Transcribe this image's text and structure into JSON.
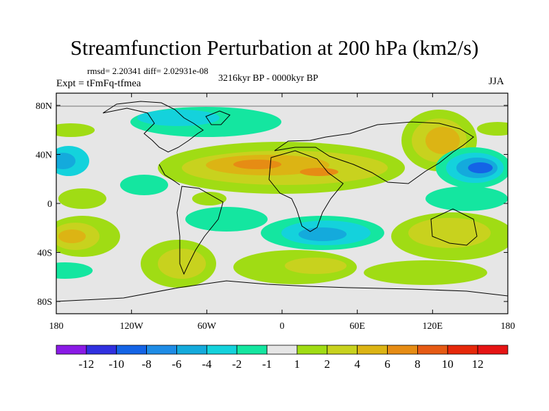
{
  "title": "Streamfunction Perturbation at 200 hPa (km2/s)",
  "stats": "rmsd= 2.20341 diff= 2.02931e-08",
  "period": "3216kyr BP - 0000kyr BP",
  "experiment": "Expt = tFmFq-tfmea",
  "season": "JJA",
  "map": {
    "projection": "cylindrical equidistant",
    "background_color": "#e6e6e6",
    "lon_ticks": [
      "180",
      "120W",
      "60W",
      "0",
      "60E",
      "120E",
      "180"
    ],
    "lat_ticks": [
      "80N",
      "40N",
      "0",
      "40S",
      "80S"
    ]
  },
  "colorbar": {
    "labels": [
      "-12",
      "-10",
      "-8",
      "-6",
      "-4",
      "-2",
      "-1",
      "1",
      "2",
      "4",
      "6",
      "8",
      "10",
      "12"
    ],
    "colors": [
      "#8a1ae6",
      "#3030e0",
      "#1464e6",
      "#1e8ce6",
      "#14aadc",
      "#14d2dc",
      "#14e6a0",
      "#e6e6e6",
      "#a0dc14",
      "#c8d21e",
      "#dcb414",
      "#e68c14",
      "#e65a14",
      "#e6280a",
      "#e61414"
    ]
  }
}
